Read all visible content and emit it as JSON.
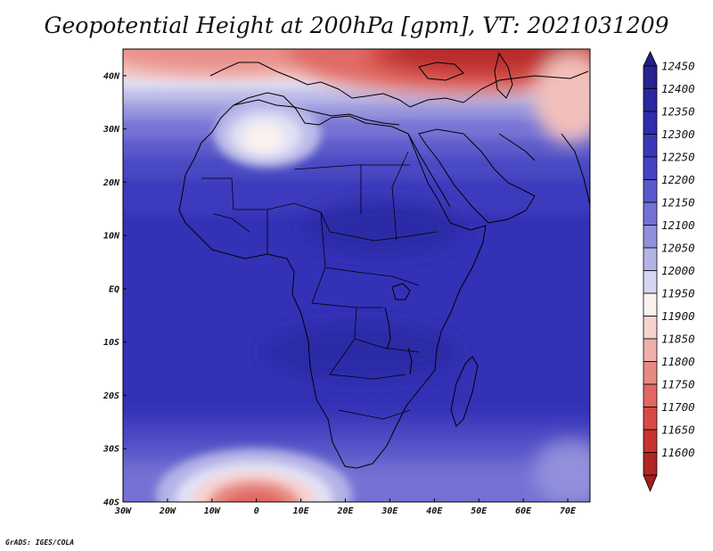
{
  "title": "Geopotential Height at 200hPa [gpm], VT: 2021031209",
  "credit": "GrADS: IGES/COLA",
  "map": {
    "lon_range": [
      -30,
      75
    ],
    "lat_range": [
      -40,
      45
    ],
    "x_ticks": [
      {
        "value": -30,
        "label": "30W"
      },
      {
        "value": -20,
        "label": "20W"
      },
      {
        "value": -10,
        "label": "10W"
      },
      {
        "value": 0,
        "label": "0"
      },
      {
        "value": 10,
        "label": "10E"
      },
      {
        "value": 20,
        "label": "20E"
      },
      {
        "value": 30,
        "label": "30E"
      },
      {
        "value": 40,
        "label": "40E"
      },
      {
        "value": 50,
        "label": "50E"
      },
      {
        "value": 60,
        "label": "60E"
      },
      {
        "value": 70,
        "label": "70E"
      }
    ],
    "y_ticks": [
      {
        "value": 40,
        "label": "40N"
      },
      {
        "value": 30,
        "label": "30N"
      },
      {
        "value": 20,
        "label": "20N"
      },
      {
        "value": 10,
        "label": "10N"
      },
      {
        "value": 0,
        "label": "EQ"
      },
      {
        "value": -10,
        "label": "10S"
      },
      {
        "value": -20,
        "label": "20S"
      },
      {
        "value": -30,
        "label": "30S"
      },
      {
        "value": -40,
        "label": "40S"
      }
    ]
  },
  "colorbar": {
    "levels": [
      {
        "value": "12450",
        "color": "#262390"
      },
      {
        "value": "12400",
        "color": "#2b27a0"
      },
      {
        "value": "12350",
        "color": "#302cae"
      },
      {
        "value": "12300",
        "color": "#3a38b8"
      },
      {
        "value": "12250",
        "color": "#4644c2"
      },
      {
        "value": "12200",
        "color": "#5a58ca"
      },
      {
        "value": "12150",
        "color": "#7472d4"
      },
      {
        "value": "12100",
        "color": "#9290dc"
      },
      {
        "value": "12050",
        "color": "#b4b3e6"
      },
      {
        "value": "12000",
        "color": "#d6d5f2"
      },
      {
        "value": "11950",
        "color": "#fbf2ef"
      },
      {
        "value": "11900",
        "color": "#f6d3cf"
      },
      {
        "value": "11850",
        "color": "#efb0aa"
      },
      {
        "value": "11800",
        "color": "#e88a84"
      },
      {
        "value": "11750",
        "color": "#e16863"
      },
      {
        "value": "11700",
        "color": "#d84a46"
      },
      {
        "value": "11650",
        "color": "#c8322f"
      },
      {
        "value": "11600",
        "color": "#b22525"
      }
    ],
    "top_arrow_color": "#231f86",
    "bottom_arrow_color": "#a31f1f"
  },
  "colors": {
    "deep_blue": "#3331b6",
    "red_top": "#b22525",
    "coast": "#000000"
  }
}
